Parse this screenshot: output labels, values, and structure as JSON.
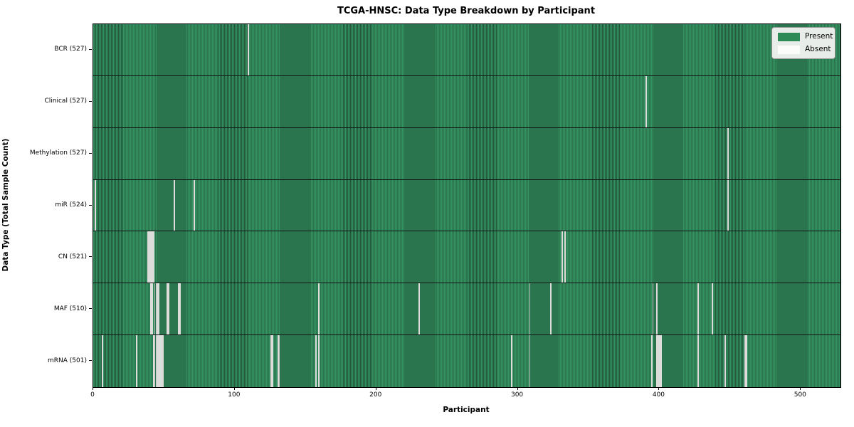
{
  "chart_data": {
    "type": "heatmap",
    "title": "TCGA-HNSC: Data Type Breakdown by Participant",
    "xlabel": "Participant",
    "ylabel": "Data Type (Total Sample Count)",
    "legend": {
      "present": "Present",
      "absent": "Absent"
    },
    "legend_position": "upper right",
    "grid": false,
    "x_axis": {
      "min": 0,
      "max": 528,
      "ticks": [
        0,
        100,
        200,
        300,
        400,
        500
      ]
    },
    "total_participants": 528,
    "colors": {
      "present": "#2e8b57",
      "present_stripe_light": "#359361",
      "present_stripe_dark": "#21573a",
      "absent": "#f3f3f1",
      "row_separator": "#141414",
      "axis": "#000000",
      "legend_bg": "#e9ede9",
      "legend_border": "#9a9a9a"
    },
    "rows": [
      {
        "id": "bcr",
        "label": "BCR (527)",
        "data_type": "BCR",
        "present_count": 527,
        "absent_participants": [
          109
        ]
      },
      {
        "id": "clinical",
        "label": "Clinical (527)",
        "data_type": "Clinical",
        "present_count": 527,
        "absent_participants": [
          390
        ]
      },
      {
        "id": "methylation",
        "label": "Methylation (527)",
        "data_type": "Methylation",
        "present_count": 527,
        "absent_participants": [
          448
        ]
      },
      {
        "id": "mir",
        "label": "miR (524)",
        "data_type": "miR",
        "present_count": 524,
        "absent_participants": [
          1,
          57,
          71,
          448
        ]
      },
      {
        "id": "cn",
        "label": "CN (521)",
        "data_type": "CN",
        "present_count": 521,
        "absent_participants": [
          38,
          39,
          40,
          41,
          42,
          331,
          333
        ]
      },
      {
        "id": "maf",
        "label": "MAF (510)",
        "data_type": "MAF",
        "present_count": 510,
        "absent_participants": [
          40,
          41,
          43,
          44,
          45,
          46,
          52,
          53,
          60,
          61,
          159,
          230,
          308,
          323,
          395,
          398,
          427,
          437
        ]
      },
      {
        "id": "mrna",
        "label": "mRNA (501)",
        "data_type": "mRNA",
        "present_count": 501,
        "absent_participants": [
          6,
          30,
          42,
          43,
          44,
          45,
          46,
          47,
          48,
          49,
          125,
          126,
          130,
          131,
          157,
          159,
          295,
          308,
          394,
          398,
          399,
          400,
          401,
          427,
          446,
          460,
          461
        ]
      }
    ]
  }
}
